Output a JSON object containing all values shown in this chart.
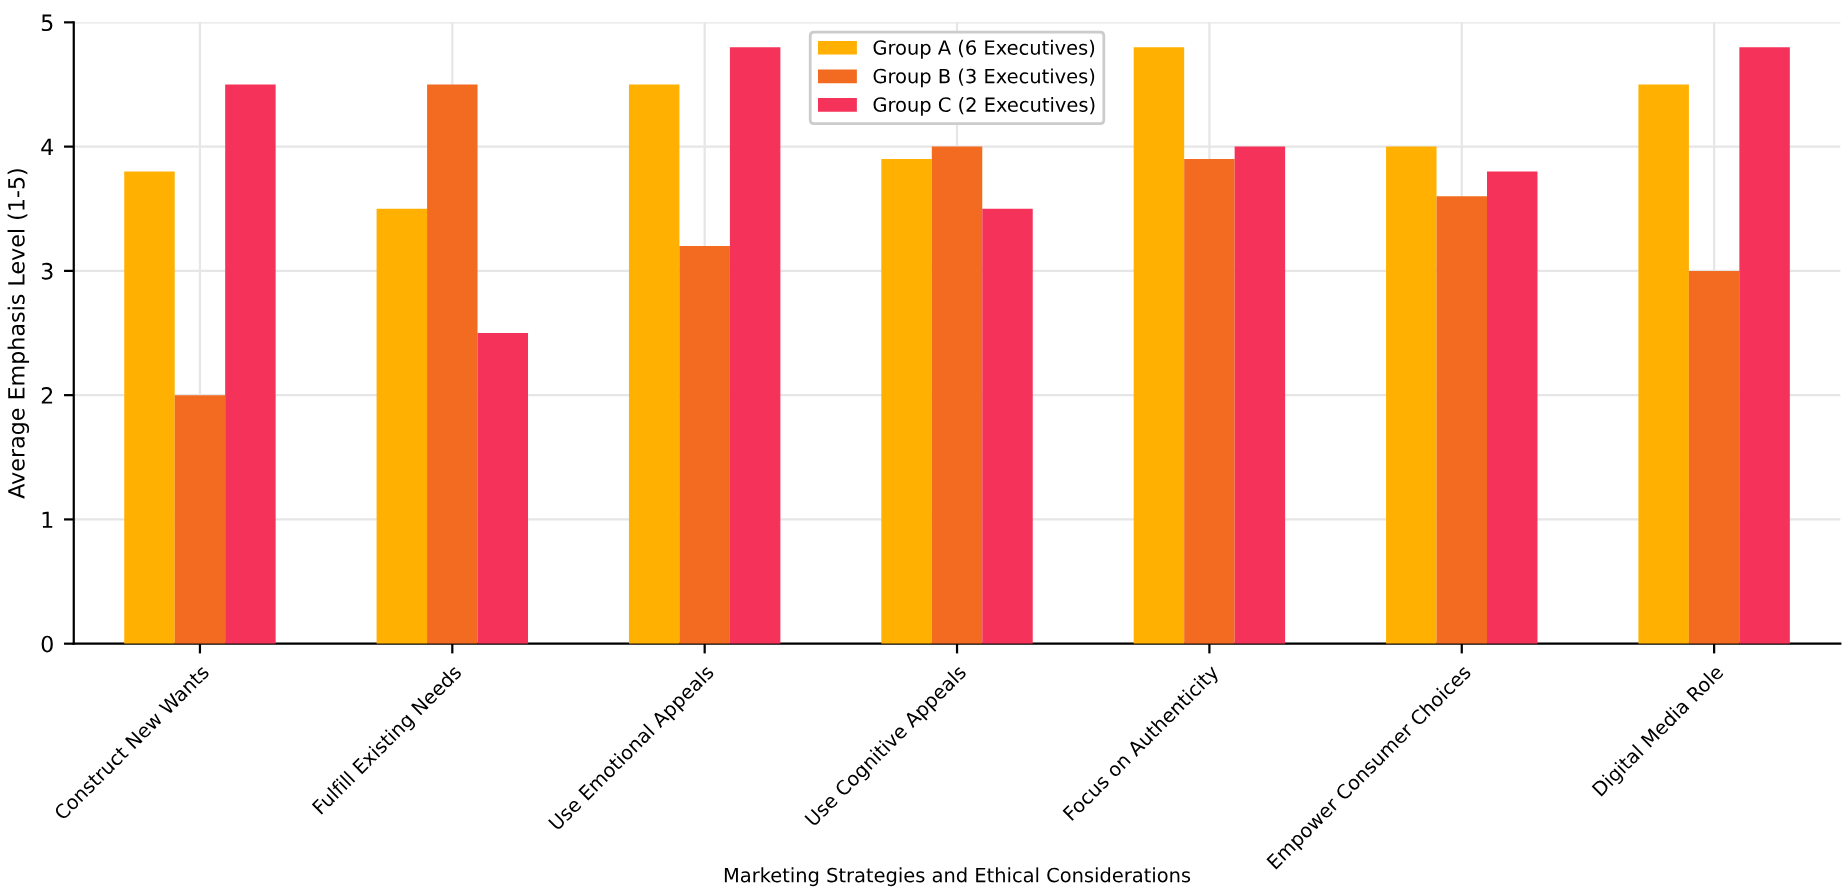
{
  "chart_data": {
    "type": "bar",
    "xlabel": "Marketing Strategies and Ethical Considerations",
    "ylabel": "Average Emphasis Level (1-5)",
    "categories": [
      "Construct New Wants",
      "Fulfill Existing Needs",
      "Use Emotional Appeals",
      "Use Cognitive Appeals",
      "Focus on Authenticity",
      "Empower Consumer Choices",
      "Digital Media Role"
    ],
    "series": [
      {
        "name": "Group A (6 Executives)",
        "color": "#ffb000",
        "values": [
          3.8,
          3.5,
          4.5,
          3.9,
          4.8,
          4.0,
          4.5
        ]
      },
      {
        "name": "Group B (3 Executives)",
        "color": "#f26b21",
        "values": [
          2.0,
          4.5,
          3.2,
          4.0,
          3.9,
          3.6,
          3.0
        ]
      },
      {
        "name": "Group C (2 Executives)",
        "color": "#f5325a",
        "values": [
          4.5,
          2.5,
          4.8,
          3.5,
          4.0,
          3.8,
          4.8
        ]
      }
    ],
    "ylim": [
      0,
      5
    ],
    "yticks": [
      0,
      1,
      2,
      3,
      4,
      5
    ],
    "grid": true,
    "legend": "top"
  }
}
